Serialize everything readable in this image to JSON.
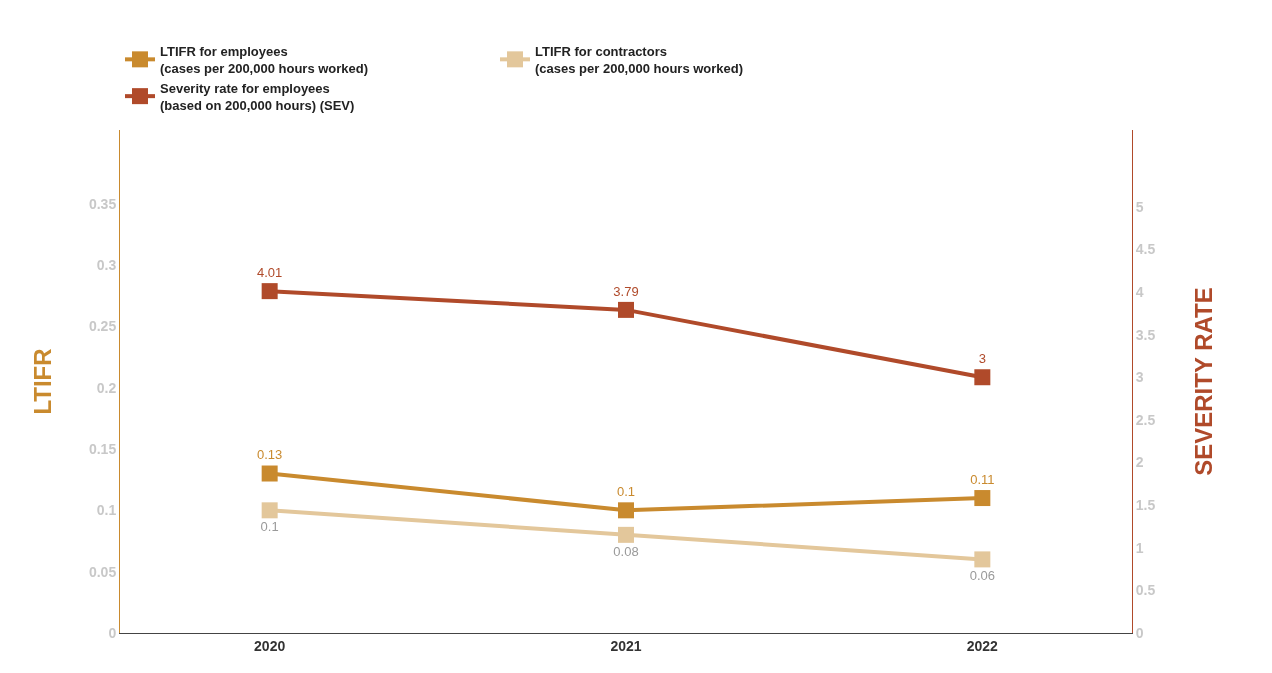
{
  "chart_data": {
    "type": "line",
    "categories": [
      "2020",
      "2021",
      "2022"
    ],
    "ylabel": "LTIFR",
    "y2label": "SEVERITY RATE",
    "series": [
      {
        "name": "LTIFR for employees (cases per 200,000 hours worked)",
        "color": "#c98a2e",
        "values": [
          0.13,
          0.1,
          0.11
        ]
      },
      {
        "name": "LTIFR for contractors (cases per 200,000 hours worked)",
        "color": "#e3c79b",
        "values": [
          0.1,
          0.08,
          0.06
        ]
      },
      {
        "name": "Severity rate for employees (based on 200,000 hours) (SEV)",
        "color": "#b04a2a",
        "values": [
          4.01,
          3.79,
          3
        ],
        "axis": "y2"
      }
    ],
    "ylim": [
      0,
      0.41
    ],
    "yticks": [
      0,
      0.05,
      0.1,
      0.15,
      0.2,
      0.25,
      0.3,
      0.35
    ],
    "y2lim": [
      0,
      5.9
    ],
    "y2ticks": [
      0,
      0.5,
      1,
      1.5,
      2,
      2.5,
      3,
      3.5,
      4,
      4.5,
      5
    ],
    "data_labels": true,
    "grid": false,
    "legend": "top",
    "marker": "square",
    "line_style": "solid"
  }
}
